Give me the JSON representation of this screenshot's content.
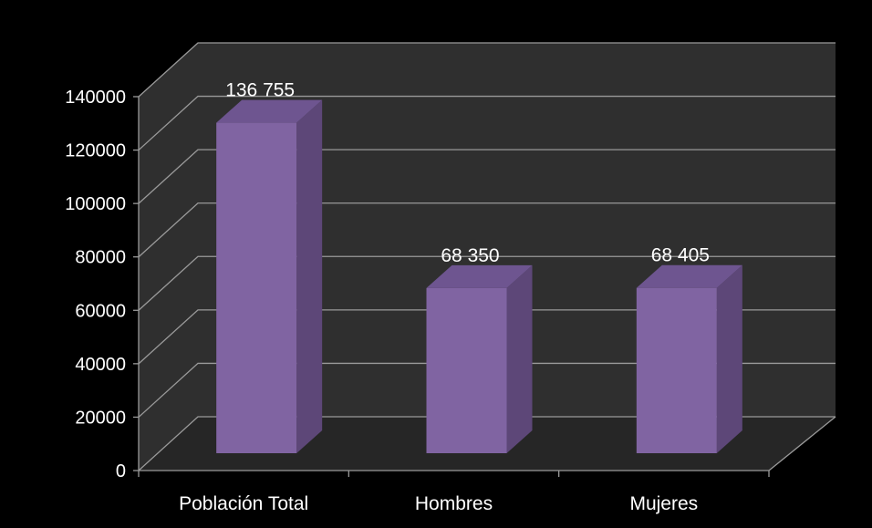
{
  "chart_data": {
    "type": "bar",
    "categories": [
      "Población Total",
      "Hombres",
      "Mujeres"
    ],
    "values": [
      136755,
      68350,
      68405
    ],
    "data_labels": [
      "136 755",
      "68 350",
      "68 405"
    ],
    "ylim": [
      0,
      140000
    ],
    "yticks": [
      "0",
      "20000",
      "40000",
      "60000",
      "80000",
      "100000",
      "120000",
      "140000"
    ],
    "grid": true,
    "legend": "none",
    "style": "3d-column",
    "colors": {
      "background": "#000000",
      "wall": "#2f2f2f",
      "floor": "#262626",
      "grid": "#9a9a9a",
      "bar_front": "#8064a2",
      "bar_side": "#5d4778",
      "bar_top": "#6e5590",
      "text": "#ffffff"
    }
  }
}
